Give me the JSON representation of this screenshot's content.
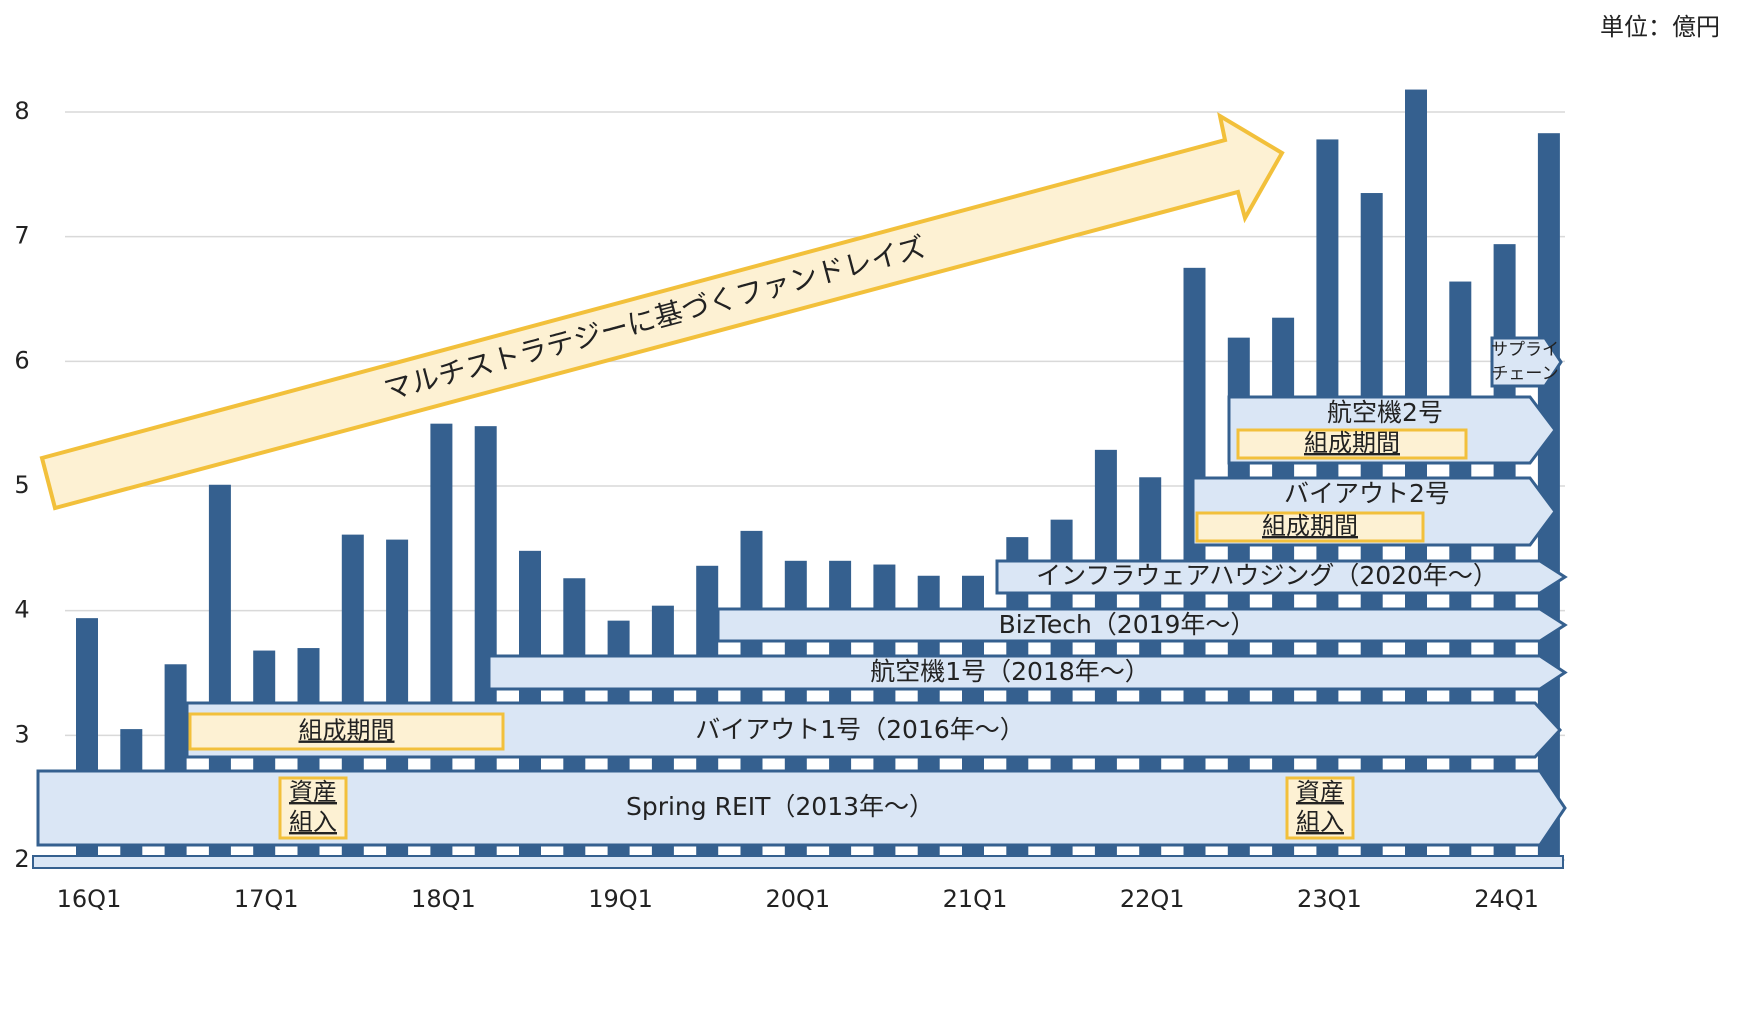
{
  "chart_data": {
    "type": "bar",
    "unit": "単位：億円",
    "arrow_label": "マルチストラテジーに基づくファンドレイズ",
    "categories": [
      "16Q1",
      null,
      null,
      null,
      "17Q1",
      null,
      null,
      null,
      "18Q1",
      null,
      null,
      null,
      "19Q1",
      null,
      null,
      null,
      "20Q1",
      null,
      null,
      null,
      "21Q1",
      null,
      null,
      null,
      "22Q1",
      null,
      null,
      null,
      "23Q1",
      null,
      null,
      null,
      "24Q1",
      null
    ],
    "values": [
      3.94,
      3.05,
      3.57,
      5.01,
      3.68,
      3.7,
      4.61,
      4.57,
      5.5,
      5.48,
      4.48,
      4.26,
      3.92,
      4.04,
      4.36,
      4.64,
      4.4,
      4.4,
      4.37,
      4.28,
      4.28,
      4.59,
      4.73,
      5.29,
      5.07,
      6.75,
      6.19,
      6.35,
      7.78,
      7.35,
      8.18,
      6.64,
      6.94,
      7.83
    ],
    "color": "#35608f",
    "ylim": [
      2,
      8
    ],
    "yticks": [
      2,
      3,
      4,
      5,
      6,
      7,
      8
    ],
    "grid": true,
    "bands": [
      {
        "label": "Spring REIT（2013年～）",
        "notes": [
          [
            "資産",
            "組入"
          ],
          [
            "資産",
            "組入"
          ]
        ]
      },
      {
        "label": "バイアウト1号（2016年～）",
        "notes": [
          [
            "組成期間"
          ]
        ]
      },
      {
        "label": "航空機1号（2018年～）",
        "notes": []
      },
      {
        "label": "BizTech（2019年～）",
        "notes": []
      },
      {
        "label": "インフラウェアハウジング（2020年～）",
        "notes": []
      },
      {
        "label": "バイアウト2号",
        "notes": [
          [
            "組成期間"
          ]
        ]
      },
      {
        "label": "航空機2号",
        "notes": [
          [
            "組成期間"
          ]
        ]
      },
      {
        "label": [
          "サプライ",
          "チェーン"
        ],
        "notes": []
      }
    ]
  }
}
